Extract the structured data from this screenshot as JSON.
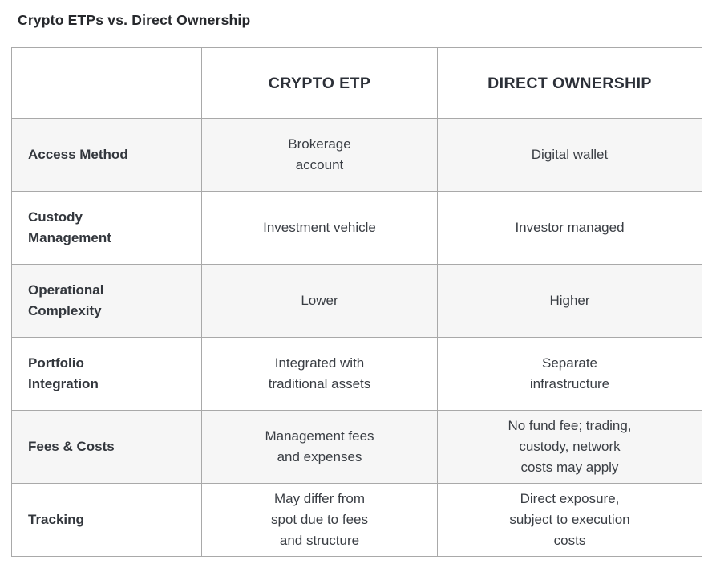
{
  "title": "Crypto ETPs vs. Direct Ownership",
  "table": {
    "columns": [
      "",
      "CRYPTO ETP",
      "DIRECT OWNERSHIP"
    ],
    "rows": [
      {
        "label": "Access Method",
        "etp": "Brokerage\naccount",
        "direct": "Digital wallet"
      },
      {
        "label": "Custody\nManagement",
        "etp": "Investment vehicle",
        "direct": "Investor managed"
      },
      {
        "label": "Operational\nComplexity",
        "etp": "Lower",
        "direct": "Higher"
      },
      {
        "label": "Portfolio\nIntegration",
        "etp": "Integrated with\ntraditional assets",
        "direct": "Separate\ninfrastructure"
      },
      {
        "label": "Fees & Costs",
        "etp": "Management fees\nand expenses",
        "direct": "No fund fee; trading,\ncustody, network\ncosts may apply"
      },
      {
        "label": "Tracking",
        "etp": "May differ from\nspot due to fees\nand structure",
        "direct": "Direct exposure,\nsubject to execution\ncosts"
      }
    ]
  },
  "colors": {
    "stripe": "#f6f6f6",
    "border": "#a9a9a9",
    "heading_text": "#2c3038",
    "body_text": "#3a3e44"
  }
}
